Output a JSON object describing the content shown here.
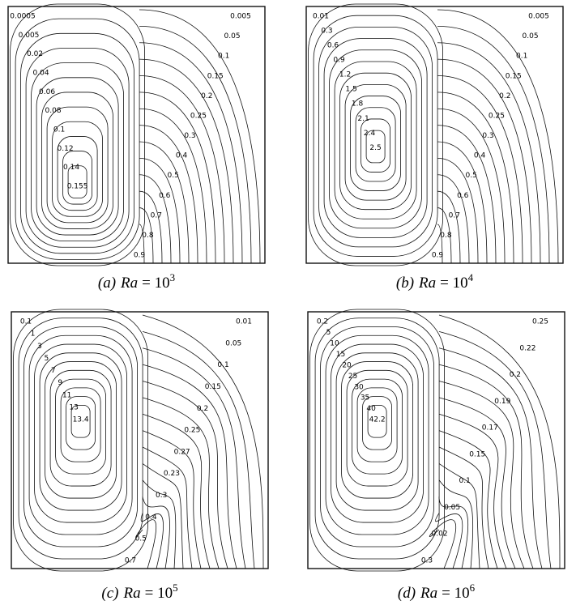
{
  "panels": [
    {
      "label": "(a)",
      "variable": "Ra",
      "equals": "= 10",
      "exponent": "3",
      "streamline_labels": [
        "0.0005",
        "0.005",
        "0.02",
        "0.04",
        "0.06",
        "0.08",
        "0.1",
        "0.12",
        "0.14",
        "0.155"
      ],
      "isotherm_labels": [
        "0.005",
        "0.05",
        "0.1",
        "0.15",
        "0.2",
        "0.25",
        "0.3",
        "0.4",
        "0.5",
        "0.6",
        "0.7",
        "0.8",
        "0.9"
      ]
    },
    {
      "label": "(b)",
      "variable": "Ra",
      "equals": "= 10",
      "exponent": "4",
      "streamline_labels": [
        "0.01",
        "0.3",
        "0.6",
        "0.9",
        "1.2",
        "1.5",
        "1.8",
        "2.1",
        "2.4",
        "2.5"
      ],
      "isotherm_labels": [
        "0.005",
        "0.05",
        "0.1",
        "0.15",
        "0.2",
        "0.25",
        "0.3",
        "0.4",
        "0.5",
        "0.6",
        "0.7",
        "0.8",
        "0.9"
      ]
    },
    {
      "label": "(c)",
      "variable": "Ra",
      "equals": "= 10",
      "exponent": "5",
      "streamline_labels": [
        "0.1",
        "1",
        "3",
        "5",
        "7",
        "9",
        "11",
        "13",
        "13.4"
      ],
      "isotherm_labels": [
        "0.01",
        "0.05",
        "0.1",
        "0.15",
        "0.2",
        "0.25",
        "0.27",
        "0.23",
        "0.3",
        "0.4",
        "0.5",
        "0.7"
      ]
    },
    {
      "label": "(d)",
      "variable": "Ra",
      "equals": "= 10",
      "exponent": "6",
      "streamline_labels": [
        "0.2",
        "5",
        "10",
        "15",
        "20",
        "25",
        "30",
        "35",
        "40",
        "42.2"
      ],
      "isotherm_labels": [
        "0.25",
        "0.22",
        "0.2",
        "0.19",
        "0.17",
        "0.15",
        "0.1",
        "0.05",
        "0.02",
        "0.3"
      ]
    }
  ]
}
